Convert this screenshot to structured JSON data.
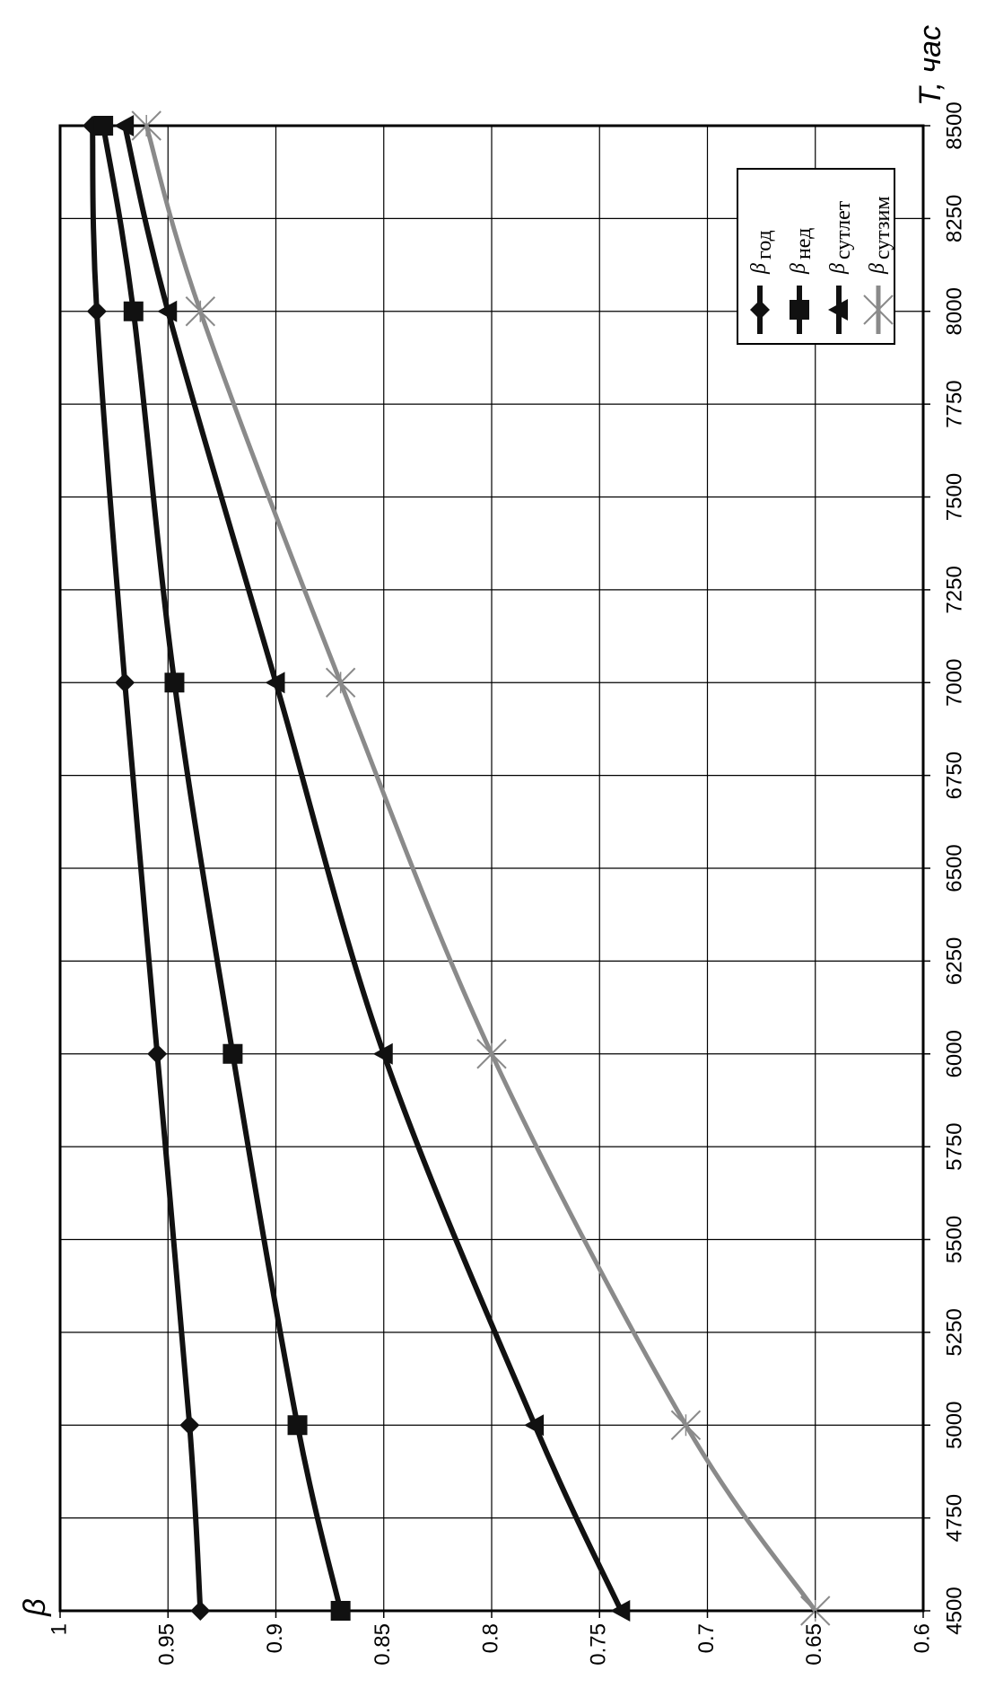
{
  "chart_data": {
    "type": "line",
    "title": "",
    "xlabel": "T, час",
    "ylabel": "β",
    "orientation": "rotated-90-ccw",
    "xlim": [
      4500,
      8500
    ],
    "ylim": [
      0.6,
      1.0
    ],
    "x_ticks": [
      "4500",
      "4750",
      "5000",
      "5250",
      "5500",
      "5750",
      "6000",
      "6250",
      "6500",
      "6750",
      "7000",
      "7250",
      "7500",
      "7750",
      "8000",
      "8250",
      "8500"
    ],
    "y_ticks": [
      "1",
      "0.95",
      "0.9",
      "0.85",
      "0.8",
      "0.75",
      "0.7",
      "0.65",
      "0.6"
    ],
    "grid": true,
    "legend_position": "top-right",
    "series": [
      {
        "name": "β год",
        "legend_base": "β",
        "legend_sub": "год",
        "marker": "diamond",
        "color": "#111111",
        "x": [
          4500,
          5000,
          6000,
          7000,
          8000,
          8500
        ],
        "values": [
          0.935,
          0.94,
          0.955,
          0.97,
          0.983,
          0.985
        ]
      },
      {
        "name": "β нед",
        "legend_base": "β",
        "legend_sub": "нед",
        "marker": "square",
        "color": "#111111",
        "x": [
          4500,
          5000,
          6000,
          7000,
          8000,
          8500
        ],
        "values": [
          0.87,
          0.89,
          0.92,
          0.947,
          0.966,
          0.98
        ]
      },
      {
        "name": "β сутлет",
        "legend_base": "β",
        "legend_sub": "сутлет",
        "marker": "triangle",
        "color": "#111111",
        "x": [
          4500,
          5000,
          6000,
          7000,
          8000,
          8500
        ],
        "values": [
          0.74,
          0.78,
          0.85,
          0.9,
          0.95,
          0.97
        ]
      },
      {
        "name": "β сутзим",
        "legend_base": "β",
        "legend_sub": "сутзим",
        "marker": "star",
        "color": "#8a8a8a",
        "x": [
          4500,
          5000,
          6000,
          7000,
          8000,
          8500
        ],
        "values": [
          0.65,
          0.71,
          0.8,
          0.87,
          0.935,
          0.96
        ]
      }
    ]
  }
}
